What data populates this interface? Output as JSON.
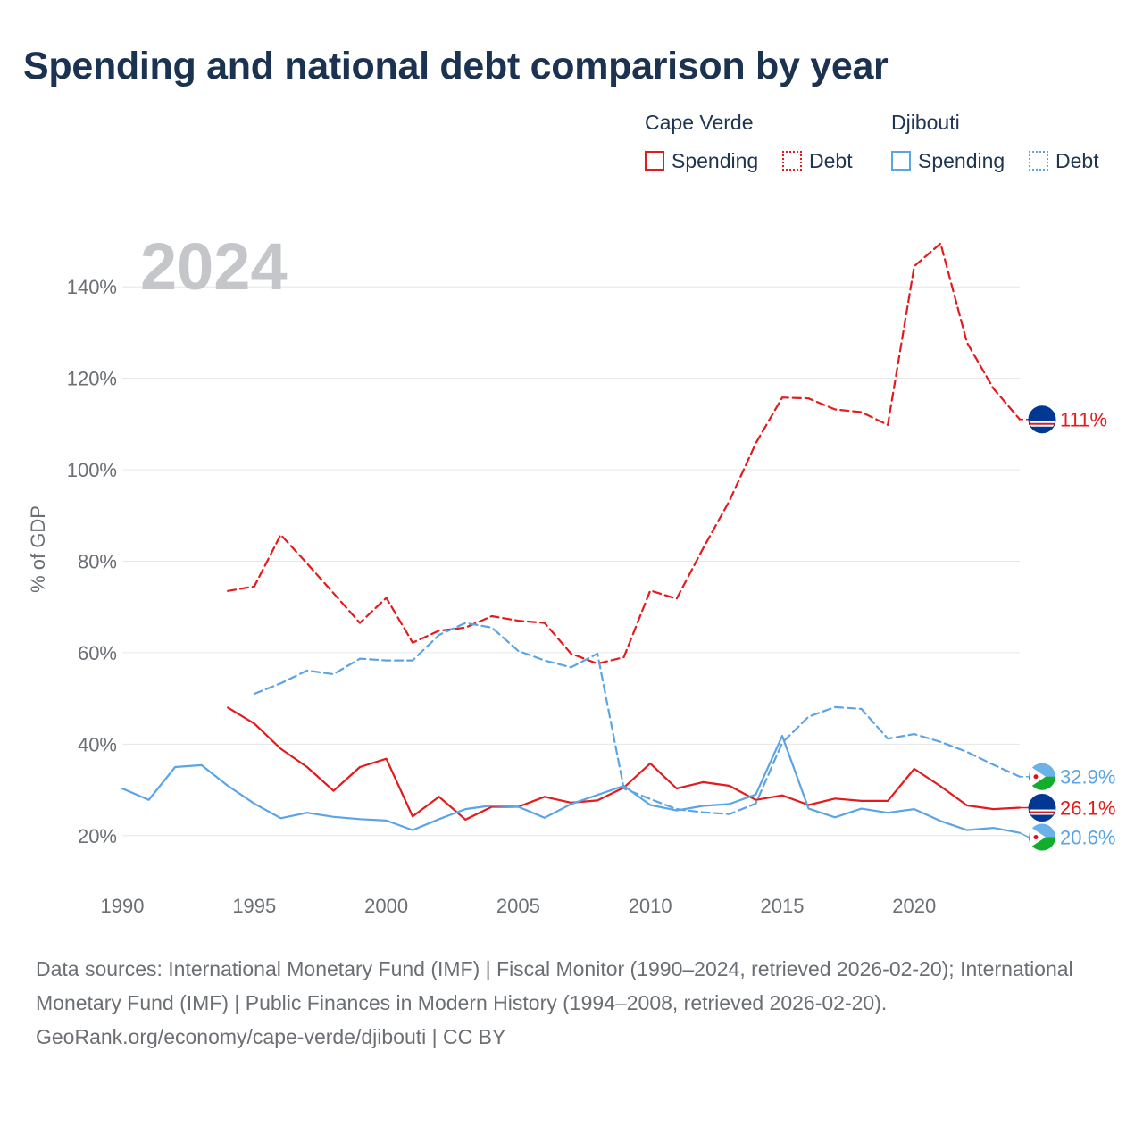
{
  "page": {
    "title": "Spending and national debt comparison by year",
    "footer": {
      "sources": "Data sources: International Monetary Fund (IMF) | Fiscal Monitor (1990–2024, retrieved 2026-02-20); International Monetary Fund (IMF) | Public Finances in Modern History (1994–2008, retrieved 2026-02-20).",
      "credit": "GeoRank.org/economy/cape-verde/djibouti | CC BY"
    }
  },
  "legend": {
    "groups": [
      {
        "label": "Cape Verde",
        "items": [
          "Spending",
          "Debt"
        ]
      },
      {
        "label": "Djibouti",
        "items": [
          "Spending",
          "Debt"
        ]
      }
    ]
  },
  "colors": {
    "cape_verde": "#e41a1c",
    "djibouti": "#5ba4e5",
    "year_watermark": "#c4c6c9",
    "axis_text": "#6b6f74",
    "grid": "#e6e6e6"
  },
  "chart_data": {
    "type": "line",
    "year_label": "2024",
    "ylabel": "% of GDP",
    "xlim": [
      1990,
      2024
    ],
    "ylim": [
      10,
      150
    ],
    "x_ticks": [
      1990,
      1995,
      2000,
      2005,
      2010,
      2015,
      2020
    ],
    "y_ticks": [
      {
        "value": 20,
        "label": "20%"
      },
      {
        "value": 40,
        "label": "40%"
      },
      {
        "value": 60,
        "label": "60%"
      },
      {
        "value": 80,
        "label": "80%"
      },
      {
        "value": 100,
        "label": "100%"
      },
      {
        "value": 120,
        "label": "120%"
      },
      {
        "value": 140,
        "label": "140%"
      }
    ],
    "series": [
      {
        "name": "Cape Verde Spending",
        "country": "Cape Verde",
        "metric": "Spending",
        "color": "#e41a1c",
        "dashed": false,
        "end_label": "26.1%",
        "flag": "cape-verde",
        "x": [
          1994,
          1995,
          1996,
          1997,
          1998,
          1999,
          2000,
          2001,
          2002,
          2003,
          2004,
          2005,
          2006,
          2007,
          2008,
          2009,
          2010,
          2011,
          2012,
          2013,
          2014,
          2015,
          2016,
          2017,
          2018,
          2019,
          2020,
          2021,
          2022,
          2023,
          2024
        ],
        "values": [
          48.0,
          44.5,
          39.0,
          35.0,
          29.8,
          35.0,
          36.8,
          24.2,
          28.5,
          23.5,
          26.3,
          26.3,
          28.5,
          27.2,
          27.7,
          30.5,
          35.8,
          30.3,
          31.7,
          30.9,
          27.8,
          28.8,
          26.7,
          28.1,
          27.6,
          27.6,
          34.6,
          30.8,
          26.6,
          25.8,
          26.1
        ]
      },
      {
        "name": "Cape Verde Debt",
        "country": "Cape Verde",
        "metric": "Debt",
        "color": "#e41a1c",
        "dashed": true,
        "end_label": "111%",
        "flag": "cape-verde",
        "x": [
          1994,
          1995,
          1996,
          1997,
          1998,
          1999,
          2000,
          2001,
          2002,
          2003,
          2004,
          2005,
          2006,
          2007,
          2008,
          2009,
          2010,
          2011,
          2012,
          2013,
          2014,
          2015,
          2016,
          2017,
          2018,
          2019,
          2020,
          2021,
          2022,
          2023,
          2024
        ],
        "values": [
          73.5,
          74.5,
          85.8,
          79.5,
          73.0,
          66.5,
          72.0,
          62.2,
          64.8,
          65.5,
          68.0,
          67.0,
          66.5,
          59.8,
          57.6,
          59.0,
          73.6,
          71.8,
          82.8,
          93.2,
          105.8,
          115.8,
          115.6,
          113.2,
          112.6,
          109.8,
          144.5,
          149.5,
          127.8,
          117.8,
          111.0
        ]
      },
      {
        "name": "Djibouti Spending",
        "country": "Djibouti",
        "metric": "Spending",
        "color": "#5ba4e5",
        "dashed": false,
        "end_label": "20.6%",
        "flag": "djibouti",
        "x": [
          1990,
          1991,
          1992,
          1993,
          1994,
          1995,
          1996,
          1997,
          1998,
          1999,
          2000,
          2001,
          2002,
          2003,
          2004,
          2005,
          2006,
          2007,
          2008,
          2009,
          2010,
          2011,
          2012,
          2013,
          2014,
          2015,
          2016,
          2017,
          2018,
          2019,
          2020,
          2021,
          2022,
          2023,
          2024
        ],
        "values": [
          30.3,
          27.8,
          35.0,
          35.4,
          30.9,
          27.0,
          23.8,
          25.0,
          24.1,
          23.6,
          23.3,
          21.2,
          23.6,
          25.8,
          26.6,
          26.3,
          23.9,
          26.9,
          28.9,
          30.9,
          26.7,
          25.5,
          26.5,
          26.9,
          29.0,
          41.8,
          25.9,
          24.0,
          25.9,
          25.0,
          25.8,
          23.2,
          21.2,
          21.7,
          20.6
        ]
      },
      {
        "name": "Djibouti Debt",
        "country": "Djibouti",
        "metric": "Debt",
        "color": "#5ba4e5",
        "dashed": true,
        "end_label": "32.9%",
        "flag": "djibouti",
        "x": [
          1995,
          1996,
          1997,
          1998,
          1999,
          2000,
          2001,
          2002,
          2003,
          2004,
          2005,
          2006,
          2007,
          2008,
          2009,
          2010,
          2011,
          2012,
          2013,
          2014,
          2015,
          2016,
          2017,
          2018,
          2019,
          2020,
          2021,
          2022,
          2023,
          2024
        ],
        "values": [
          51.0,
          53.3,
          56.1,
          55.3,
          58.7,
          58.3,
          58.3,
          63.9,
          66.5,
          65.5,
          60.4,
          58.3,
          56.8,
          59.8,
          30.3,
          28.0,
          25.8,
          25.1,
          24.7,
          27.0,
          40.3,
          46.0,
          48.1,
          47.7,
          41.2,
          42.2,
          40.5,
          38.3,
          35.5,
          32.9
        ]
      }
    ]
  }
}
